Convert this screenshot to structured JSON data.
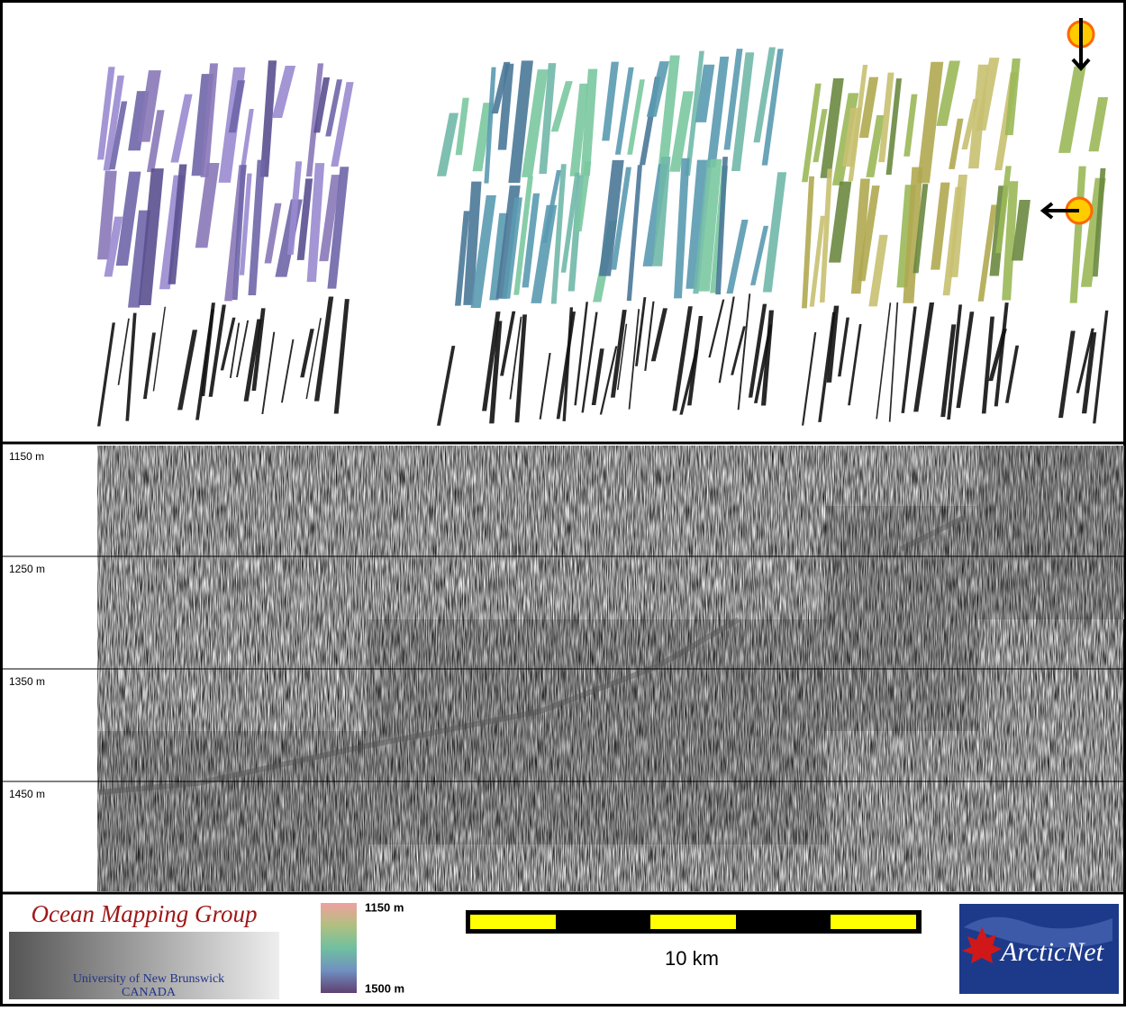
{
  "depth_axis": {
    "labels": [
      "1150 m",
      "1250 m",
      "1350 m",
      "1450 m"
    ]
  },
  "colorbar": {
    "top_label": "1150 m",
    "bottom_label": "1500 m"
  },
  "scale_bar": {
    "label": "10 km"
  },
  "logos": {
    "omg_title": "Ocean Mapping Group",
    "omg_university": "University of New Brunswick",
    "omg_country": "CANADA",
    "arcticnet": "ArcticNet"
  }
}
